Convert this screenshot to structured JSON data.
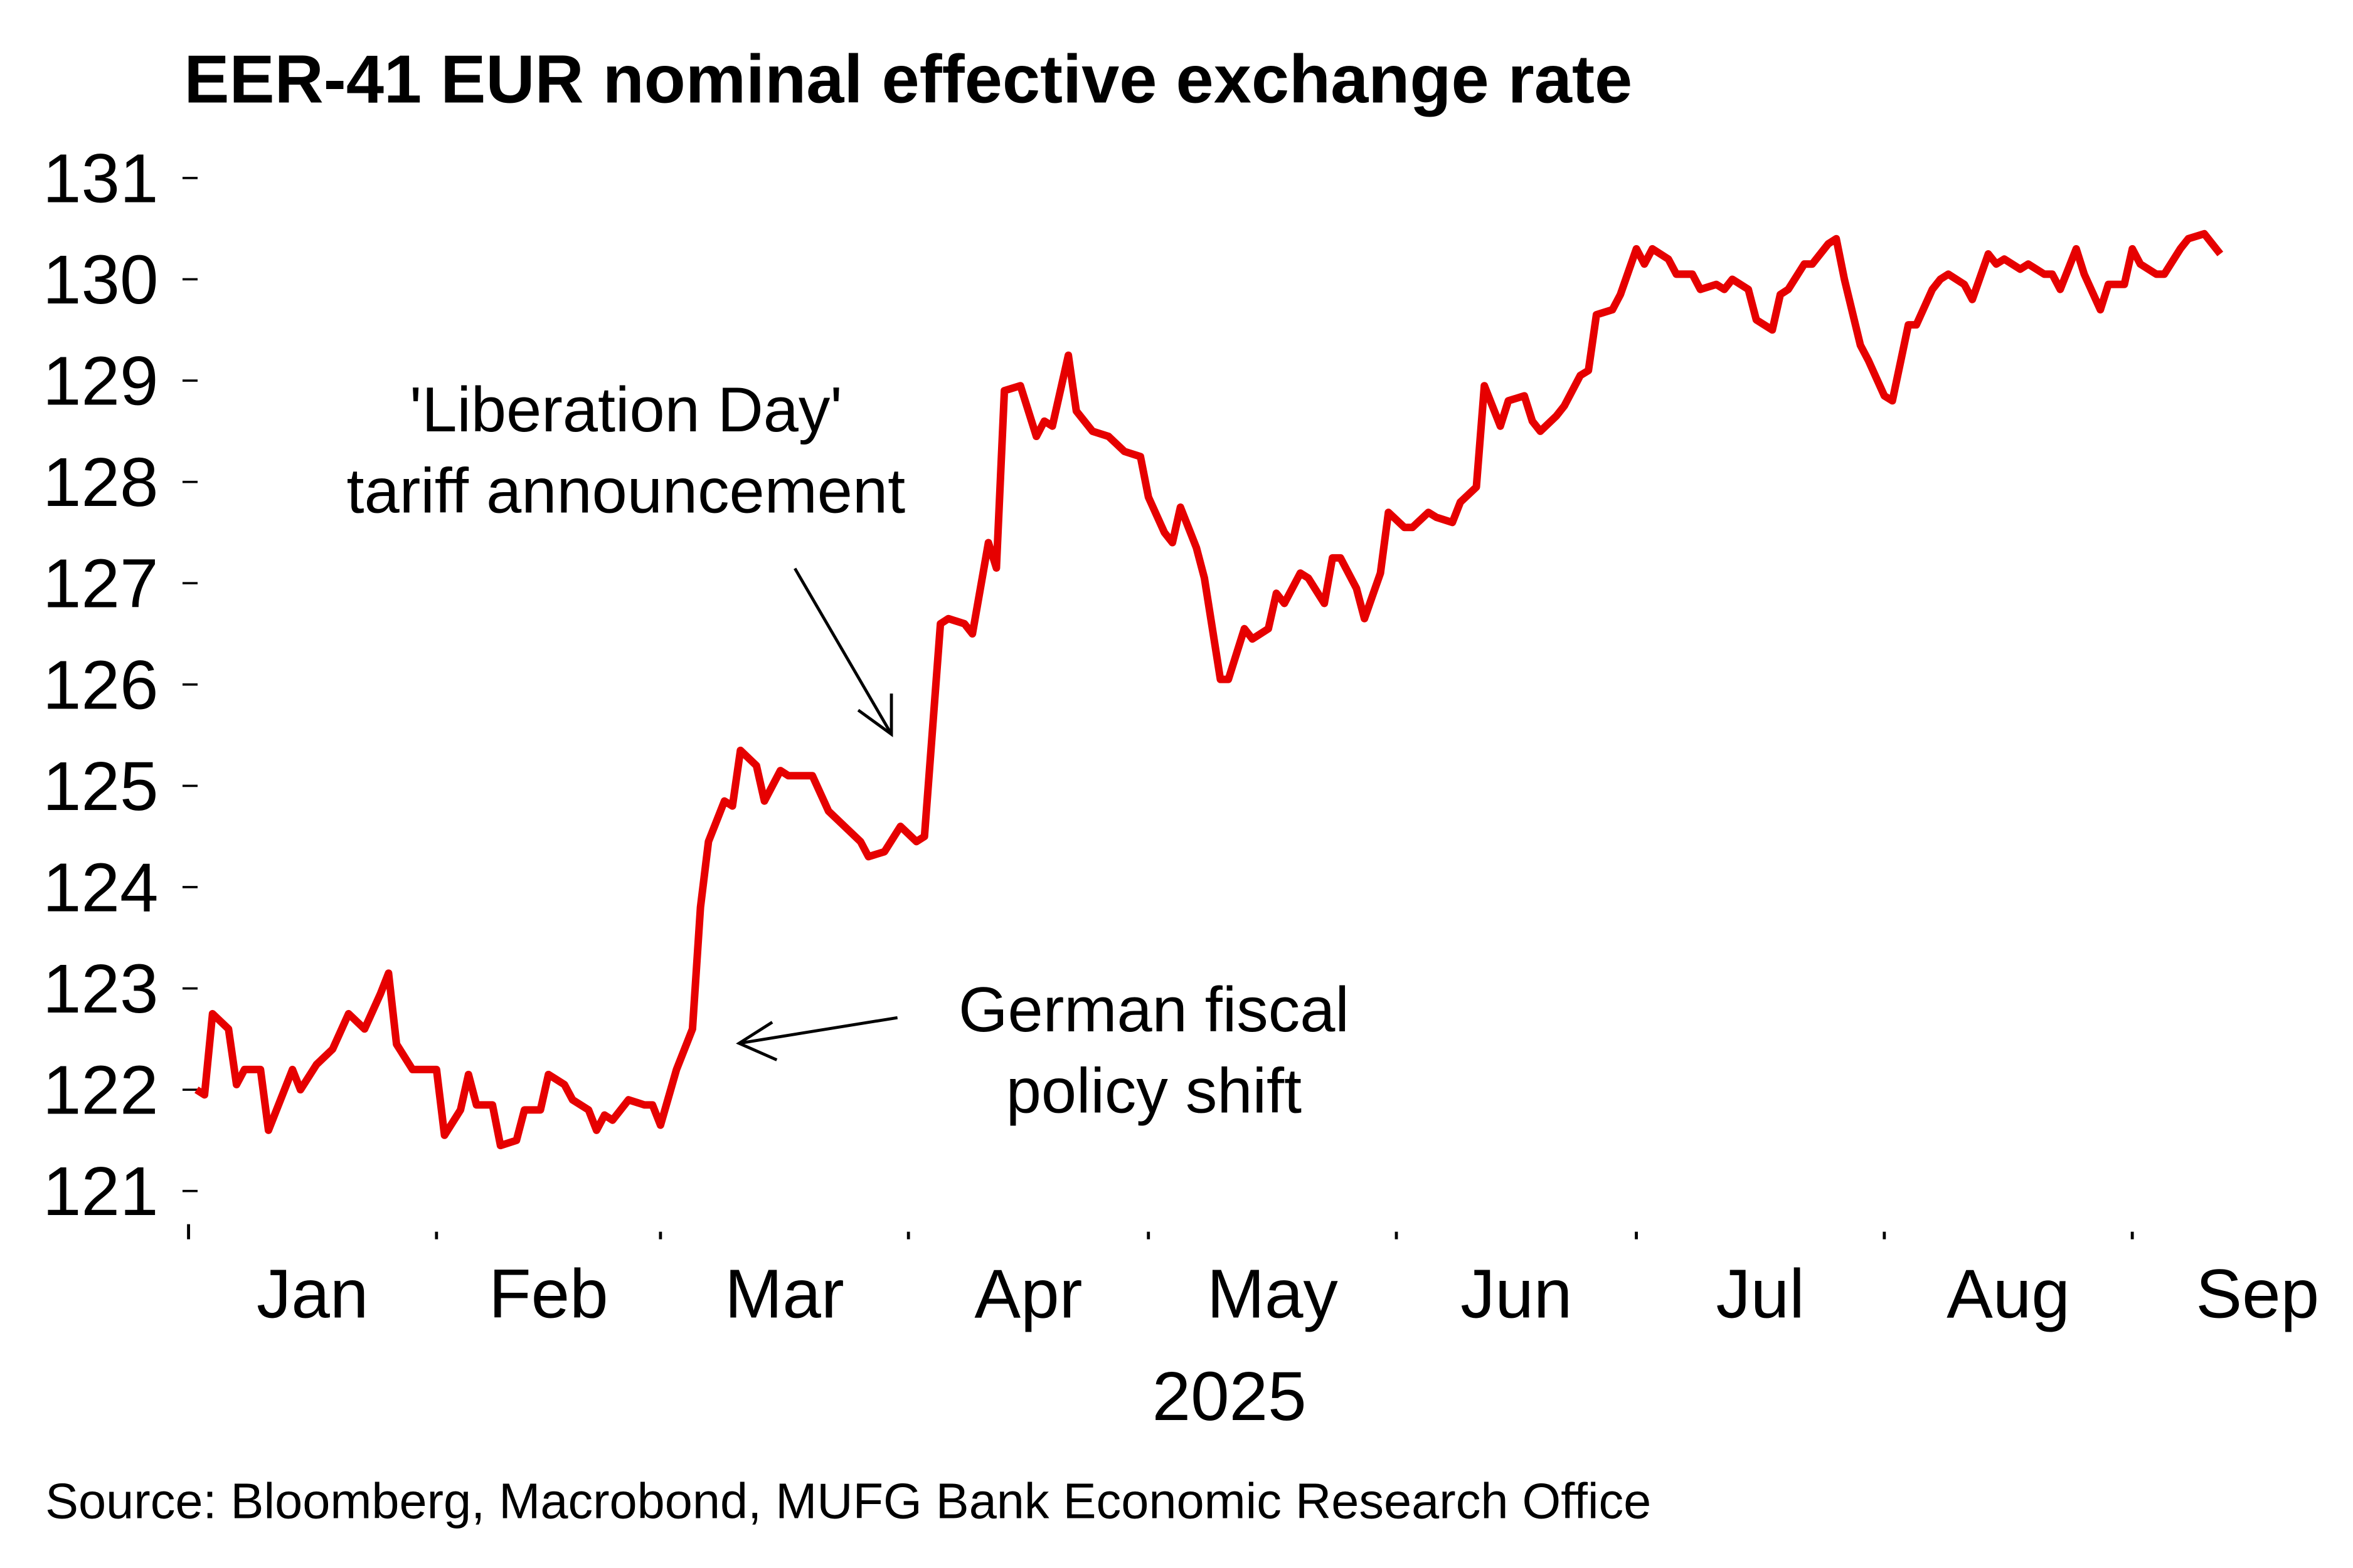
{
  "chart_data": {
    "type": "line",
    "title": "EER-41 EUR nominal effective exchange rate",
    "xlabel": "2025",
    "ylabel": "",
    "ylim": [
      121,
      131
    ],
    "yticks": [
      121,
      122,
      123,
      124,
      125,
      126,
      127,
      128,
      129,
      130,
      131
    ],
    "xlim": [
      "2025-01-01",
      "2025-09-12"
    ],
    "xtick_positions": [
      "2025-01-01",
      "2025-02-01",
      "2025-03-01",
      "2025-04-01",
      "2025-05-01",
      "2025-06-01",
      "2025-07-01",
      "2025-08-01",
      "2025-09-01"
    ],
    "xtick_labels": [
      "Jan",
      "Feb",
      "Mar",
      "Apr",
      "May",
      "Jun",
      "Jul",
      "Aug",
      "Sep"
    ],
    "grid": false,
    "series": [
      {
        "color": "#e60000",
        "x": [
          "2025-01-02",
          "2025-01-03",
          "2025-01-04",
          "2025-01-06",
          "2025-01-07",
          "2025-01-08",
          "2025-01-10",
          "2025-01-11",
          "2025-01-14",
          "2025-01-15",
          "2025-01-17",
          "2025-01-19",
          "2025-01-21",
          "2025-01-23",
          "2025-01-25",
          "2025-01-26",
          "2025-01-27",
          "2025-01-29",
          "2025-02-01",
          "2025-02-02",
          "2025-02-04",
          "2025-02-05",
          "2025-02-06",
          "2025-02-08",
          "2025-02-09",
          "2025-02-11",
          "2025-02-12",
          "2025-02-14",
          "2025-02-15",
          "2025-02-17",
          "2025-02-18",
          "2025-02-20",
          "2025-02-21",
          "2025-02-22",
          "2025-02-23",
          "2025-02-25",
          "2025-02-27",
          "2025-02-28",
          "2025-03-01",
          "2025-03-03",
          "2025-03-05",
          "2025-03-06",
          "2025-03-07",
          "2025-03-09",
          "2025-03-10",
          "2025-03-11",
          "2025-03-13",
          "2025-03-14",
          "2025-03-16",
          "2025-03-17",
          "2025-03-19",
          "2025-03-20",
          "2025-03-22",
          "2025-03-24",
          "2025-03-26",
          "2025-03-27",
          "2025-03-29",
          "2025-03-31",
          "2025-04-02",
          "2025-04-03",
          "2025-04-05",
          "2025-04-06",
          "2025-04-08",
          "2025-04-09",
          "2025-04-11",
          "2025-04-12",
          "2025-04-13",
          "2025-04-15",
          "2025-04-17",
          "2025-04-18",
          "2025-04-19",
          "2025-04-21",
          "2025-04-22",
          "2025-04-24",
          "2025-04-26",
          "2025-04-28",
          "2025-04-30",
          "2025-05-01",
          "2025-05-03",
          "2025-05-04",
          "2025-05-05",
          "2025-05-07",
          "2025-05-08",
          "2025-05-10",
          "2025-05-11",
          "2025-05-13",
          "2025-05-14",
          "2025-05-16",
          "2025-05-17",
          "2025-05-18",
          "2025-05-20",
          "2025-05-21",
          "2025-05-23",
          "2025-05-24",
          "2025-05-25",
          "2025-05-27",
          "2025-05-28",
          "2025-05-30",
          "2025-05-31",
          "2025-06-02",
          "2025-06-03",
          "2025-06-05",
          "2025-06-06",
          "2025-06-08",
          "2025-06-09",
          "2025-06-11",
          "2025-06-12",
          "2025-06-14",
          "2025-06-15",
          "2025-06-17",
          "2025-06-18",
          "2025-06-19",
          "2025-06-21",
          "2025-06-22",
          "2025-06-24",
          "2025-06-25",
          "2025-06-26",
          "2025-06-28",
          "2025-06-29",
          "2025-07-01",
          "2025-07-02",
          "2025-07-03",
          "2025-07-05",
          "2025-07-06",
          "2025-07-08",
          "2025-07-09",
          "2025-07-11",
          "2025-07-12",
          "2025-07-13",
          "2025-07-15",
          "2025-07-16",
          "2025-07-18",
          "2025-07-19",
          "2025-07-20",
          "2025-07-22",
          "2025-07-23",
          "2025-07-25",
          "2025-07-26",
          "2025-07-27",
          "2025-07-29",
          "2025-07-30",
          "2025-08-01",
          "2025-08-02",
          "2025-08-04",
          "2025-08-05",
          "2025-08-07",
          "2025-08-08",
          "2025-08-09",
          "2025-08-11",
          "2025-08-12",
          "2025-08-14",
          "2025-08-15",
          "2025-08-16",
          "2025-08-18",
          "2025-08-19",
          "2025-08-21",
          "2025-08-22",
          "2025-08-23",
          "2025-08-25",
          "2025-08-26",
          "2025-08-28",
          "2025-08-29",
          "2025-08-31",
          "2025-09-01",
          "2025-09-02",
          "2025-09-04",
          "2025-09-05",
          "2025-09-07",
          "2025-09-08",
          "2025-09-10",
          "2025-09-11",
          "2025-09-12"
        ],
        "y": [
          122.0,
          121.95,
          122.75,
          122.6,
          122.05,
          122.2,
          122.2,
          121.6,
          122.2,
          122.0,
          122.25,
          122.4,
          122.75,
          122.6,
          122.95,
          123.15,
          122.45,
          122.2,
          122.2,
          121.55,
          121.8,
          122.15,
          121.85,
          121.85,
          121.45,
          121.5,
          121.8,
          121.8,
          122.15,
          122.05,
          121.9,
          121.8,
          121.6,
          121.75,
          121.7,
          121.9,
          121.85,
          121.85,
          121.65,
          122.2,
          122.6,
          123.8,
          124.45,
          124.85,
          124.8,
          125.35,
          125.2,
          124.85,
          125.15,
          125.1,
          125.1,
          125.1,
          124.75,
          124.6,
          124.45,
          124.3,
          124.35,
          124.6,
          124.45,
          124.5,
          126.6,
          126.65,
          126.6,
          126.5,
          127.4,
          127.15,
          128.9,
          128.95,
          128.45,
          128.6,
          128.55,
          129.25,
          128.7,
          128.5,
          128.45,
          128.3,
          128.25,
          127.85,
          127.5,
          127.4,
          127.75,
          127.35,
          127.05,
          126.05,
          126.05,
          126.55,
          126.45,
          126.55,
          126.9,
          126.8,
          127.1,
          127.05,
          126.8,
          127.25,
          127.25,
          126.95,
          126.65,
          127.1,
          127.7,
          127.55,
          127.55,
          127.7,
          127.65,
          127.6,
          127.8,
          127.95,
          128.95,
          128.55,
          128.8,
          128.85,
          128.6,
          128.5,
          128.65,
          128.75,
          129.05,
          129.1,
          129.65,
          129.7,
          129.85,
          130.3,
          130.15,
          130.3,
          130.2,
          130.05,
          130.05,
          129.9,
          129.95,
          129.9,
          130.0,
          129.9,
          129.6,
          129.5,
          129.85,
          129.9,
          130.15,
          130.15,
          130.35,
          130.4,
          130.0,
          129.35,
          129.2,
          128.85,
          128.8,
          129.55,
          129.55,
          129.9,
          130.0,
          130.05,
          129.95,
          129.8,
          130.25,
          130.15,
          130.2,
          130.1,
          130.15,
          130.05,
          130.05,
          129.9,
          130.3,
          130.05,
          129.7,
          129.95,
          129.95,
          130.3,
          130.15,
          130.05,
          130.05,
          130.3,
          130.4,
          130.45,
          130.35,
          130.25
        ]
      }
    ],
    "annotations": [
      {
        "lines": [
          "'Liberation Day'",
          "tariff announcement"
        ]
      },
      {
        "lines": [
          "German fiscal",
          "policy shift"
        ]
      }
    ],
    "source": "Source: Bloomberg, Macrobond, MUFG Bank Economic Research Office"
  }
}
